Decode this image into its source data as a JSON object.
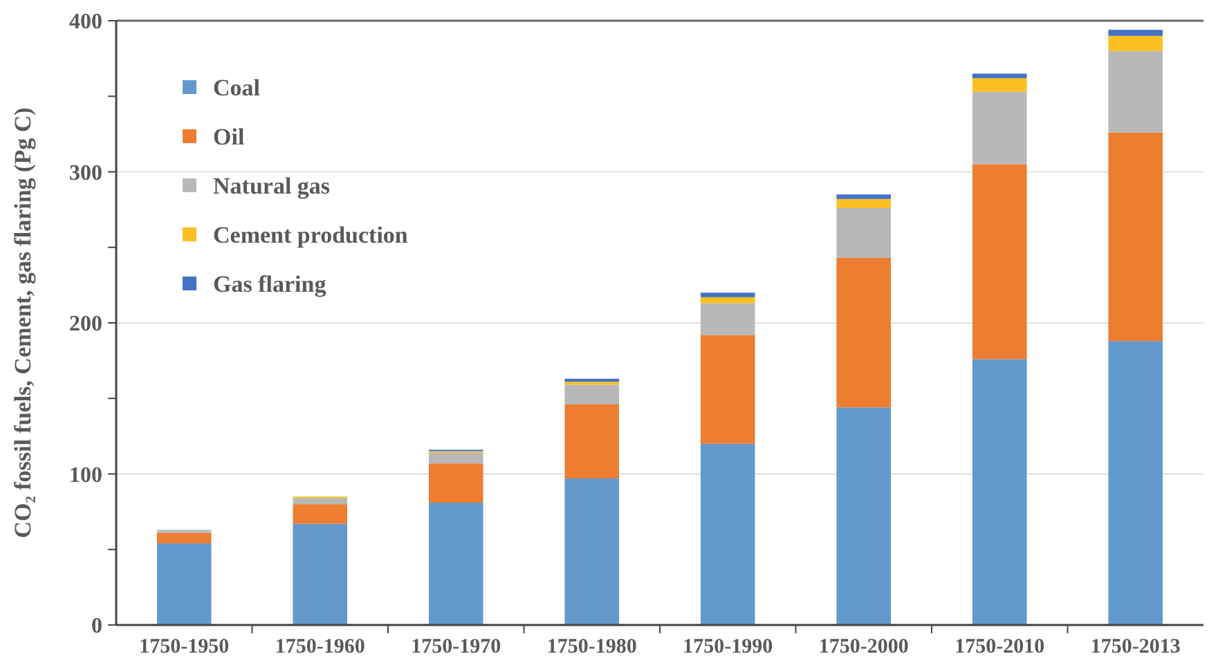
{
  "chart_data": {
    "type": "bar",
    "stacked": true,
    "ylabel": "CO₂ fossil fuels, Cement, gas flaring (Pg C)",
    "categories": [
      "1750-1950",
      "1750-1960",
      "1750-1970",
      "1750-1980",
      "1750-1990",
      "1750-2000",
      "1750-2010",
      "1750-2013"
    ],
    "series": [
      {
        "name": "Coal",
        "color": "#6399cc",
        "values": [
          54,
          67,
          81,
          97,
          120,
          144,
          176,
          188
        ]
      },
      {
        "name": "Oil",
        "color": "#ed7d31",
        "values": [
          7,
          13,
          26,
          49,
          72,
          99,
          129,
          138
        ]
      },
      {
        "name": "Natural gas",
        "color": "#b8b8b8",
        "values": [
          2,
          4,
          7,
          13,
          21,
          33,
          48,
          54
        ]
      },
      {
        "name": "Cement production",
        "color": "#fbbf22",
        "values": [
          null,
          1,
          1,
          2,
          4,
          6,
          9,
          10
        ]
      },
      {
        "name": "Gas flaring",
        "color": "#4472c4",
        "values": [
          null,
          null,
          1,
          2,
          3,
          3,
          3,
          4
        ]
      }
    ],
    "ylim": [
      0,
      400
    ],
    "yticks": [
      0,
      {
        "value": 50,
        "label": null
      },
      100,
      {
        "value": 150,
        "label": null
      },
      200,
      {
        "value": 250,
        "label": null
      },
      300,
      {
        "value": 350,
        "label": null
      },
      400
    ],
    "grid": "y",
    "legend": "top left"
  }
}
